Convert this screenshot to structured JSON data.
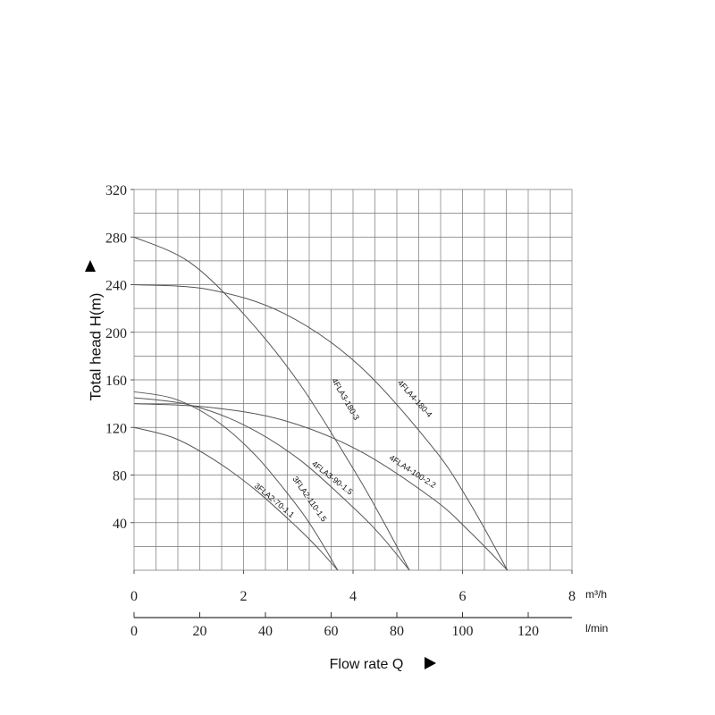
{
  "chart_data": {
    "type": "line",
    "ylabel": "Total head H(m)",
    "xlabel": "Flow rate Q",
    "xunit": "m³/h",
    "x2unit": "l/min",
    "xlim": [
      0,
      8
    ],
    "xticks": [
      0,
      2,
      4,
      6,
      8
    ],
    "x2lim": [
      0,
      133.33
    ],
    "x2ticks": [
      0,
      20,
      40,
      60,
      80,
      100,
      120
    ],
    "ylim": [
      0,
      320
    ],
    "yticks": [
      40,
      80,
      120,
      160,
      200,
      240,
      280,
      320
    ],
    "grid": true,
    "color": "#555555",
    "series": [
      {
        "name": "3FLA2-70-1.1",
        "x": [
          0,
          0.74,
          1.49,
          2.23,
          2.98,
          3.35,
          3.72
        ],
        "values": [
          120,
          111,
          92,
          67,
          36,
          19,
          0
        ]
      },
      {
        "name": "3FLA2-110-1.5",
        "x": [
          0,
          0.74,
          1.49,
          2.23,
          2.98,
          3.35,
          3.72
        ],
        "values": [
          150,
          144,
          126,
          96,
          54,
          29,
          0
        ]
      },
      {
        "name": "4FLA3-90-1.5",
        "x": [
          0,
          1.01,
          2.01,
          3.02,
          4.02,
          4.53,
          5.03
        ],
        "values": [
          145,
          139,
          122,
          93,
          52,
          28,
          0
        ]
      },
      {
        "name": "4FLA3-180-3",
        "x": [
          0,
          1.01,
          2.01,
          3.02,
          4.02,
          4.53,
          5.03
        ],
        "values": [
          280,
          259,
          215,
          157,
          84,
          43,
          0
        ]
      },
      {
        "name": "4FLA4-100-2.2",
        "x": [
          0,
          1.36,
          2.73,
          4.09,
          5.46,
          6.14,
          6.82
        ],
        "values": [
          140,
          137,
          126,
          101,
          60,
          32,
          0
        ]
      },
      {
        "name": "4FLA4-180-4",
        "x": [
          0,
          1.36,
          2.73,
          4.09,
          5.46,
          6.14,
          6.82
        ],
        "values": [
          240,
          236,
          216,
          173,
          103,
          56,
          0
        ]
      }
    ]
  }
}
